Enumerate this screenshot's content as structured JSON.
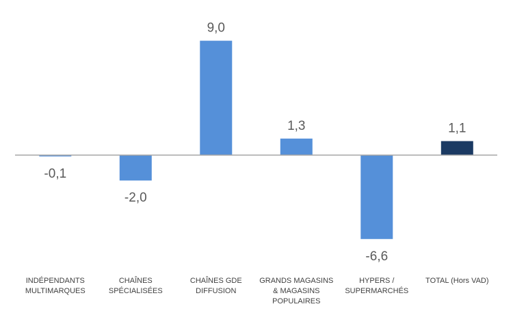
{
  "chart_data": {
    "type": "bar",
    "categories": [
      [
        "INDÉPENDANTS",
        "MULTIMARQUES"
      ],
      [
        "CHAÎNES",
        "SPÉCIALISÉES"
      ],
      [
        "CHAÎNES GDE",
        "DIFFUSION"
      ],
      [
        "GRANDS MAGASINS",
        "& MAGASINS",
        "POPULAIRES"
      ],
      [
        "HYPERS /",
        "SUPERMARCHÉS"
      ],
      [
        "TOTAL (Hors VAD)"
      ]
    ],
    "values": [
      -0.1,
      -2.0,
      9.0,
      1.3,
      -6.6,
      1.1
    ],
    "value_labels": [
      "-0,1",
      "-2,0",
      "9,0",
      "1,3",
      "-6,6",
      "1,1"
    ],
    "title": "",
    "xlabel": "",
    "ylabel": "",
    "ylim": [
      -8.6,
      11.2
    ],
    "grid": false,
    "legend": "none",
    "colors": {
      "default_bar": "#5590D9",
      "total_bar": "#1B3A63",
      "axis_line": "#A6A6A6",
      "label_text": "#595959",
      "category_text": "#404040"
    },
    "highlight_index": 5
  }
}
